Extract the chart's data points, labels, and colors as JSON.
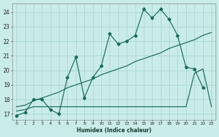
{
  "xlabel": "Humidex (Indice chaleur)",
  "bg_color": "#c9ece8",
  "grid_color": "#afd8d3",
  "line_color": "#1a6b5a",
  "xlim": [
    -0.5,
    23.5
  ],
  "ylim": [
    16.6,
    24.6
  ],
  "yticks": [
    17,
    18,
    19,
    20,
    21,
    22,
    23,
    24
  ],
  "xticks": [
    0,
    1,
    2,
    3,
    4,
    5,
    6,
    7,
    8,
    9,
    10,
    11,
    12,
    13,
    14,
    15,
    16,
    17,
    18,
    19,
    20,
    21,
    22,
    23
  ],
  "line1_x": [
    0,
    1,
    2,
    3,
    4,
    5,
    6,
    7,
    8,
    9,
    10,
    11,
    12,
    13,
    14,
    15,
    16,
    17,
    18,
    19,
    20,
    21,
    22
  ],
  "line1_y": [
    16.9,
    17.1,
    18.0,
    18.0,
    17.3,
    17.0,
    19.5,
    20.9,
    18.1,
    19.5,
    20.3,
    22.5,
    21.8,
    22.0,
    22.4,
    24.2,
    23.6,
    24.2,
    23.5,
    22.4,
    20.2,
    20.1,
    18.8
  ],
  "line2_x": [
    0,
    1,
    2,
    3,
    4,
    5,
    6,
    7,
    8,
    9,
    10,
    11,
    12,
    13,
    14,
    15,
    16,
    17,
    18,
    19,
    20,
    21,
    22,
    23
  ],
  "line2_y": [
    17.5,
    17.6,
    17.9,
    18.1,
    18.3,
    18.5,
    18.8,
    19.0,
    19.2,
    19.4,
    19.7,
    19.9,
    20.1,
    20.3,
    20.6,
    20.8,
    21.0,
    21.2,
    21.5,
    21.7,
    21.9,
    22.1,
    22.4,
    22.6
  ],
  "line3_x": [
    0,
    1,
    2,
    3,
    4,
    5,
    6,
    7,
    8,
    9,
    10,
    11,
    12,
    13,
    14,
    15,
    16,
    17,
    18,
    19,
    20,
    21,
    22,
    23
  ],
  "line3_y": [
    17.2,
    17.3,
    17.5,
    17.5,
    17.5,
    17.5,
    17.5,
    17.5,
    17.5,
    17.5,
    17.5,
    17.5,
    17.5,
    17.5,
    17.5,
    17.5,
    17.5,
    17.5,
    17.5,
    17.5,
    17.5,
    19.8,
    20.1,
    17.5
  ]
}
